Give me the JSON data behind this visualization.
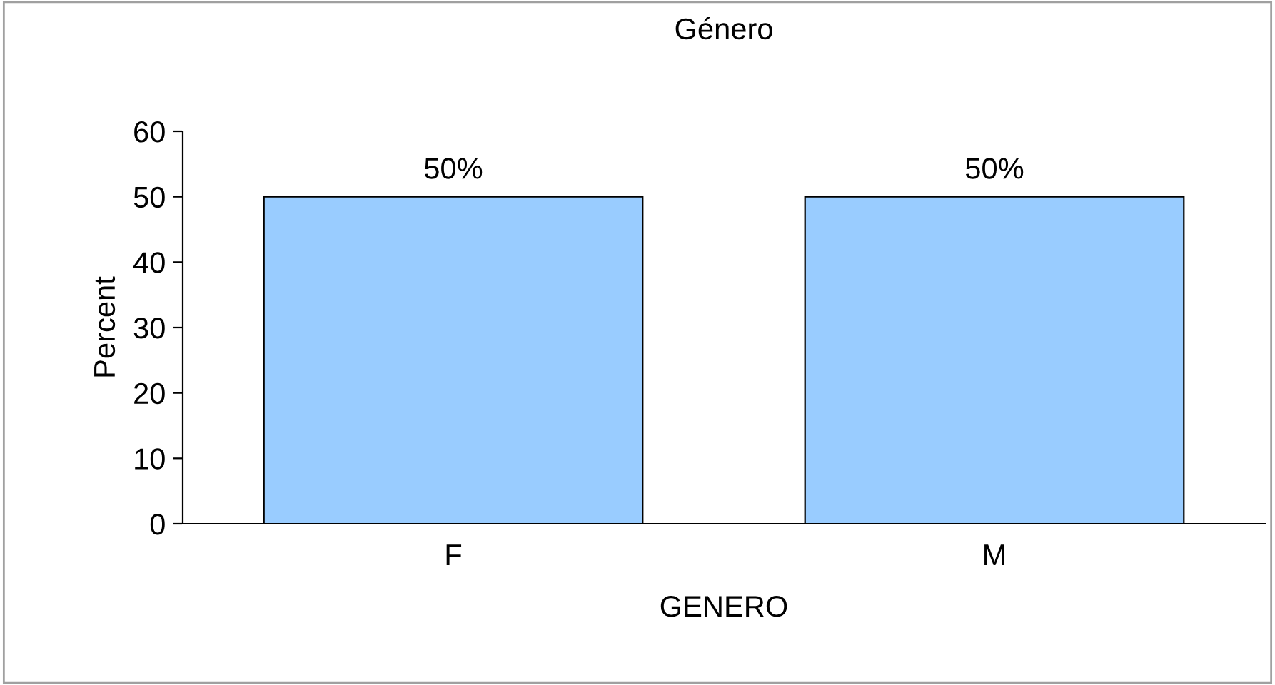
{
  "chart_data": {
    "type": "bar",
    "title": "Género",
    "xlabel": "GENERO",
    "ylabel": "Percent",
    "categories": [
      "F",
      "M"
    ],
    "values": [
      50,
      50
    ],
    "value_labels": [
      "50%",
      "50%"
    ],
    "color": "#99ccff",
    "ylim": [
      0,
      60
    ],
    "yticks": [
      0,
      10,
      20,
      30,
      40,
      50,
      60
    ],
    "grid": false
  }
}
